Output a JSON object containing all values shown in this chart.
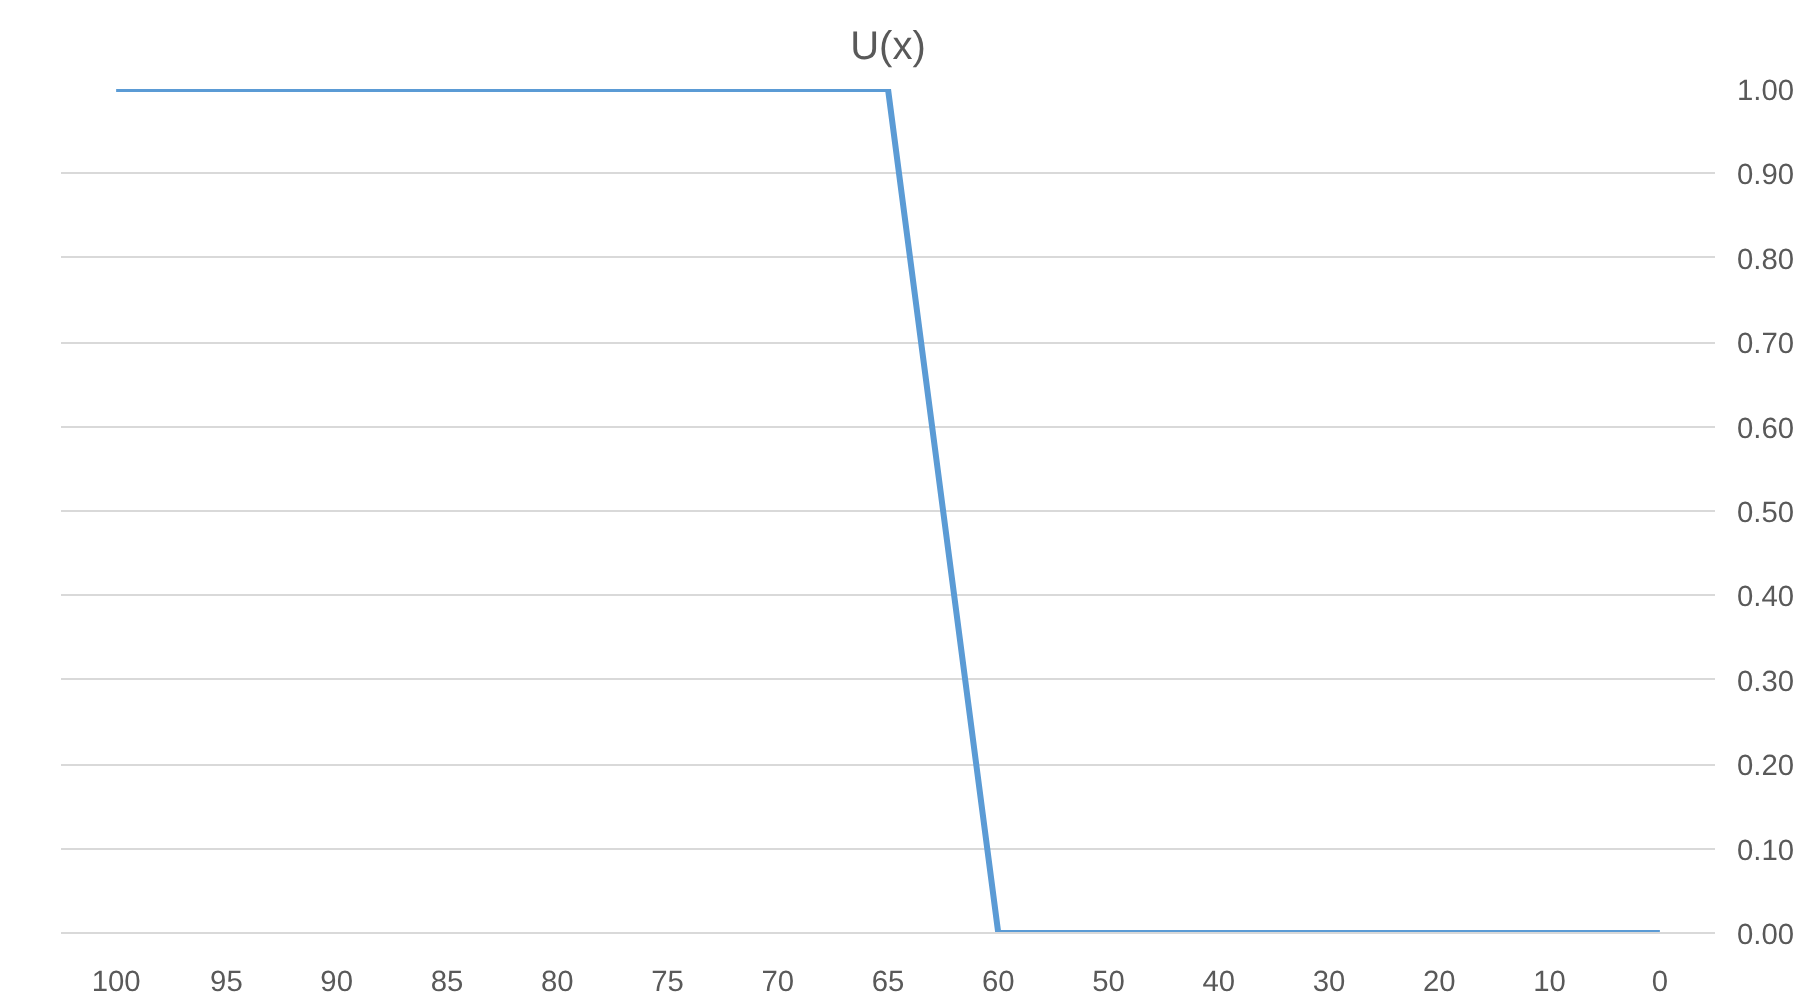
{
  "chart_data": {
    "type": "line",
    "title": "U(x)",
    "categories": [
      "100",
      "95",
      "90",
      "85",
      "80",
      "75",
      "70",
      "65",
      "60",
      "50",
      "40",
      "30",
      "20",
      "10",
      "0"
    ],
    "series": [
      {
        "color": "#5b9bd5",
        "values": [
          1,
          1,
          1,
          1,
          1,
          1,
          1,
          1,
          0,
          0,
          0,
          0,
          0,
          0,
          0
        ]
      }
    ],
    "ylim": [
      0,
      1
    ],
    "yticks": [
      {
        "value": 0,
        "label": "0.00"
      },
      {
        "value": 0.1,
        "label": "0.10"
      },
      {
        "value": 0.2,
        "label": "0.20"
      },
      {
        "value": 0.3,
        "label": "0.30"
      },
      {
        "value": 0.4,
        "label": "0.40"
      },
      {
        "value": 0.5,
        "label": "0.50"
      },
      {
        "value": 0.6,
        "label": "0.60"
      },
      {
        "value": 0.7,
        "label": "0.70"
      },
      {
        "value": 0.8,
        "label": "0.80"
      },
      {
        "value": 0.9,
        "label": "0.90"
      },
      {
        "value": 1,
        "label": "1.00"
      }
    ],
    "grid": "y",
    "marker": "none",
    "line_style": "solid"
  }
}
